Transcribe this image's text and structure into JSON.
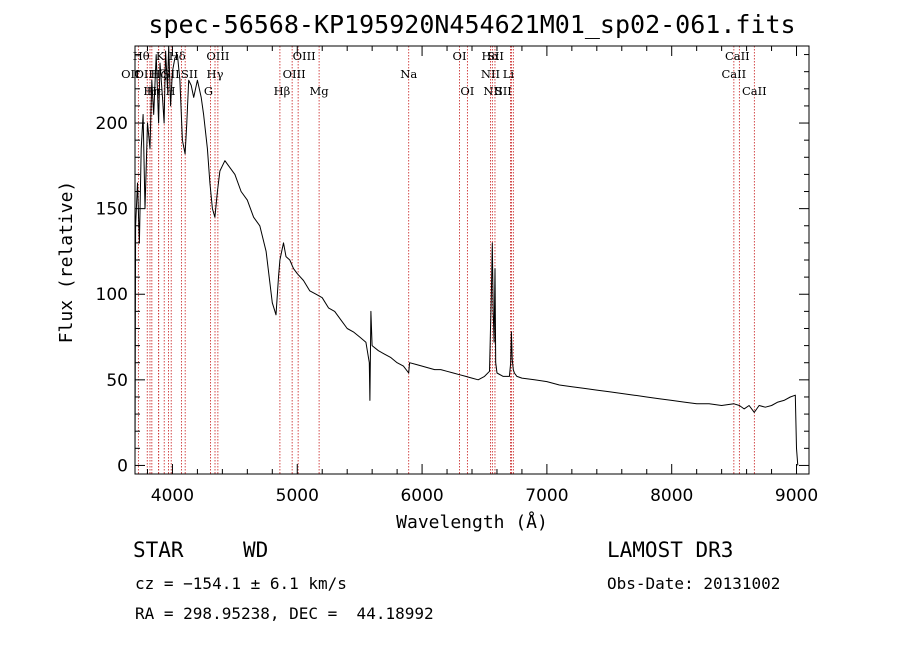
{
  "chart_data": {
    "type": "line",
    "title": "spec-56568-KP195920N454621M01_sp02-061.fits",
    "xlabel": "Wavelength (Å)",
    "ylabel": "Flux (relative)",
    "xlim": [
      3700,
      9100
    ],
    "ylim": [
      -5,
      245
    ],
    "xticks": [
      4000,
      5000,
      6000,
      7000,
      8000,
      9000
    ],
    "yticks": [
      0,
      50,
      100,
      150,
      200
    ],
    "series": [
      {
        "name": "flux",
        "x": [
          3700,
          3705,
          3720,
          3735,
          3750,
          3765,
          3780,
          3800,
          3820,
          3835,
          3850,
          3870,
          3889,
          3900,
          3920,
          3933,
          3945,
          3960,
          3970,
          3985,
          4000,
          4020,
          4040,
          4060,
          4080,
          4101,
          4115,
          4130,
          4150,
          4170,
          4200,
          4230,
          4250,
          4280,
          4300,
          4320,
          4340,
          4360,
          4380,
          4400,
          4420,
          4450,
          4500,
          4550,
          4600,
          4650,
          4700,
          4750,
          4800,
          4830,
          4850,
          4861,
          4875,
          4890,
          4910,
          4940,
          4970,
          5000,
          5050,
          5100,
          5150,
          5200,
          5250,
          5300,
          5350,
          5400,
          5450,
          5500,
          5550,
          5577,
          5582,
          5590,
          5600,
          5650,
          5700,
          5750,
          5800,
          5850,
          5893,
          5900,
          5950,
          6000,
          6050,
          6100,
          6150,
          6200,
          6250,
          6300,
          6350,
          6400,
          6450,
          6500,
          6540,
          6548,
          6555,
          6563,
          6570,
          6577,
          6584,
          6590,
          6600,
          6650,
          6700,
          6710,
          6716,
          6722,
          6731,
          6740,
          6760,
          6800,
          6900,
          7000,
          7100,
          7200,
          7300,
          7400,
          7500,
          7600,
          7700,
          7800,
          7900,
          8000,
          8100,
          8200,
          8300,
          8400,
          8498,
          8542,
          8580,
          8620,
          8662,
          8700,
          8750,
          8800,
          8850,
          8900,
          8950,
          8990,
          9000,
          9010
        ],
        "values": [
          2,
          140,
          165,
          130,
          185,
          205,
          150,
          200,
          185,
          225,
          205,
          240,
          200,
          235,
          215,
          200,
          242,
          220,
          245,
          210,
          230,
          238,
          240,
          225,
          190,
          182,
          200,
          225,
          222,
          215,
          225,
          215,
          205,
          185,
          165,
          150,
          145,
          160,
          172,
          175,
          178,
          175,
          170,
          160,
          155,
          145,
          140,
          125,
          95,
          88,
          110,
          120,
          125,
          130,
          122,
          120,
          115,
          112,
          108,
          102,
          100,
          98,
          92,
          90,
          85,
          80,
          78,
          75,
          72,
          60,
          38,
          90,
          70,
          67,
          65,
          63,
          60,
          58,
          54,
          60,
          59,
          58,
          57,
          56,
          56,
          55,
          54,
          53,
          52,
          51,
          50,
          52,
          55,
          80,
          98,
          130,
          90,
          72,
          115,
          60,
          54,
          52,
          52,
          60,
          78,
          62,
          56,
          54,
          52,
          51,
          50,
          49,
          47,
          46,
          45,
          44,
          43,
          42,
          41,
          40,
          39,
          38,
          37,
          36,
          36,
          35,
          36,
          35,
          33,
          35,
          31,
          35,
          34,
          35,
          37,
          38,
          40,
          41,
          10,
          0
        ]
      }
    ],
    "lines": [
      {
        "label": "OII",
        "wl": 3727,
        "row": 2,
        "dx": -8
      },
      {
        "label": "Hθ",
        "wl": 3798,
        "row": 1,
        "dx": -6
      },
      {
        "label": "OIII",
        "wl": 3820,
        "row": 2,
        "dx": -4
      },
      {
        "label": "Hη",
        "wl": 3835,
        "row": 3,
        "dx": 0
      },
      {
        "label": "Hζ",
        "wl": 3889,
        "row": 2,
        "dx": 0
      },
      {
        "label": "Hε",
        "wl": 3890,
        "row": 3,
        "dx": -4
      },
      {
        "label": "K",
        "wl": 3934,
        "row": 1,
        "dx": -4
      },
      {
        "label": "SII",
        "wl": 3990,
        "row": 2,
        "dx": 0
      },
      {
        "label": "H",
        "wl": 3969,
        "row": 3,
        "dx": 2
      },
      {
        "label": "Hδ",
        "wl": 4102,
        "row": 1,
        "dx": -8
      },
      {
        "label": "SII",
        "wl": 4072,
        "row": 2,
        "dx": 8
      },
      {
        "label": "OIII",
        "wl": 4364,
        "row": 1,
        "dx": 0
      },
      {
        "label": "Hγ",
        "wl": 4341,
        "row": 2,
        "dx": 0
      },
      {
        "label": "G",
        "wl": 4305,
        "row": 3,
        "dx": -2
      },
      {
        "label": "OIII",
        "wl": 4959,
        "row": 1,
        "dx": 12
      },
      {
        "label": "OIII",
        "wl": 5007,
        "row": 2,
        "dx": -4
      },
      {
        "label": "Hβ",
        "wl": 4861,
        "row": 3,
        "dx": 2
      },
      {
        "label": "Mg",
        "wl": 5175,
        "row": 3,
        "dx": 0
      },
      {
        "label": "Na",
        "wl": 5893,
        "row": 2,
        "dx": 0
      },
      {
        "label": "OI",
        "wl": 6300,
        "row": 1,
        "dx": 0
      },
      {
        "label": "OI",
        "wl": 6363,
        "row": 3,
        "dx": 0
      },
      {
        "label": "Hα",
        "wl": 6563,
        "row": 1,
        "dx": -2
      },
      {
        "label": "SII",
        "wl": 6716,
        "row": 1,
        "dx": -16
      },
      {
        "label": "NII",
        "wl": 6548,
        "row": 2,
        "dx": 0
      },
      {
        "label": "Li",
        "wl": 6708,
        "row": 2,
        "dx": -2
      },
      {
        "label": "NII",
        "wl": 6584,
        "row": 3,
        "dx": -2
      },
      {
        "label": "SII",
        "wl": 6731,
        "row": 3,
        "dx": -10
      },
      {
        "label": "CaII",
        "wl": 8542,
        "row": 1,
        "dx": -2
      },
      {
        "label": "CaII",
        "wl": 8498,
        "row": 2,
        "dx": 0
      },
      {
        "label": "CaII",
        "wl": 8662,
        "row": 3,
        "dx": 0
      }
    ]
  },
  "info": {
    "object_class": "STAR",
    "subclass": "WD",
    "survey": "LAMOST DR3",
    "redshift": "cz = −154.1 ± 6.1 km/s",
    "obs_date": "Obs-Date: 20131002",
    "coords": "RA = 298.95238, DEC =  44.18992"
  }
}
